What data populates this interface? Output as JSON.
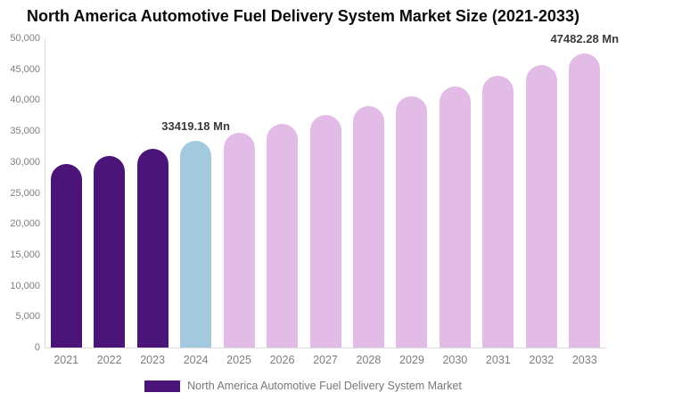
{
  "chart_data": {
    "type": "bar",
    "title": "North America Automotive Fuel Delivery System Market Size (2021-2033)",
    "categories": [
      "2021",
      "2022",
      "2023",
      "2024",
      "2025",
      "2026",
      "2027",
      "2028",
      "2029",
      "2030",
      "2031",
      "2032",
      "2033"
    ],
    "values": [
      29730,
      30910,
      32140,
      33419.18,
      34750,
      36130,
      37570,
      39070,
      40620,
      42240,
      43920,
      45670,
      47482.28
    ],
    "unit": "Mn",
    "xlabel": "",
    "ylabel": "",
    "ylim": [
      0,
      50000
    ],
    "yticks": [
      0,
      5000,
      10000,
      15000,
      20000,
      25000,
      30000,
      35000,
      40000,
      45000,
      50000
    ],
    "yticklabels": [
      "0",
      "5,000",
      "10,000",
      "15,000",
      "20,000",
      "25,000",
      "30,000",
      "35,000",
      "40,000",
      "45,000",
      "50,000"
    ],
    "grid": false,
    "legend_position": "bottom",
    "bar_segments": [
      "historical",
      "historical",
      "historical",
      "current",
      "forecast",
      "forecast",
      "forecast",
      "forecast",
      "forecast",
      "forecast",
      "forecast",
      "forecast",
      "forecast"
    ],
    "annotations": [
      {
        "category": "2024",
        "text": "33419.18 Mn"
      },
      {
        "category": "2033",
        "text": "47482.28 Mn"
      }
    ],
    "legend": {
      "label": "North America Automotive Fuel Delivery System Market",
      "swatch_color": "#4A1478"
    },
    "colors": {
      "historical": "#4A1478",
      "current": "#A2C9DE",
      "forecast": "#E2BBE7",
      "axis_line": "#DCDCDC",
      "axis_text": "#7D7D7D",
      "annotation_text": "#3A3A3A",
      "legend_text": "#777777",
      "title_text": "#0A0A0A"
    }
  }
}
